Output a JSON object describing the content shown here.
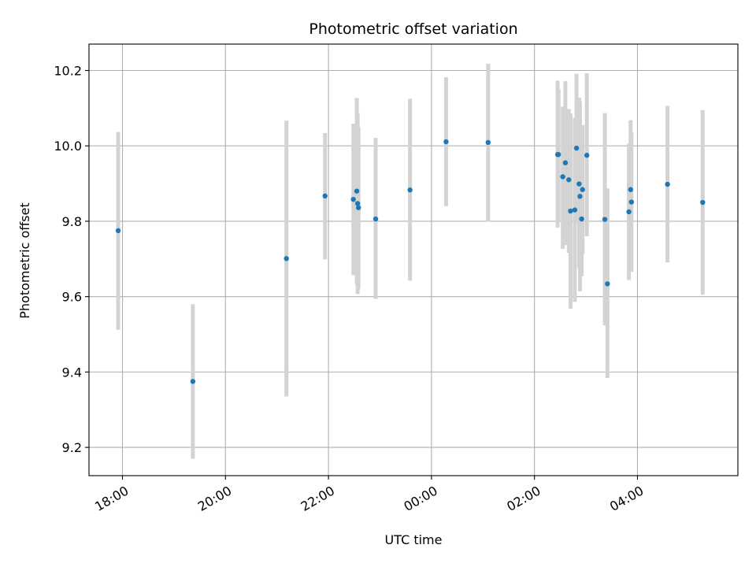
{
  "chart_data": {
    "type": "scatter",
    "title": "Photometric offset variation",
    "xlabel": "UTC time",
    "ylabel": "Photometric offset",
    "grid": true,
    "x_axis": {
      "kind": "time",
      "start": "17:21",
      "end": "05:57",
      "ticks": [
        "18:00",
        "20:00",
        "22:00",
        "00:00",
        "02:00",
        "04:00"
      ]
    },
    "y_axis": {
      "range": [
        9.125,
        10.27
      ],
      "ticks": [
        "9.2",
        "9.4",
        "9.6",
        "9.8",
        "10.0",
        "10.2"
      ]
    },
    "colors": {
      "point": "#1f77b4",
      "errorbar": "#d3d3d3",
      "grid": "#b0b0b0"
    },
    "series": [
      {
        "points": [
          {
            "t": "17:55",
            "y": 9.775,
            "lo": 9.512,
            "hi": 10.037
          },
          {
            "t": "19:22",
            "y": 9.375,
            "lo": 9.17,
            "hi": 9.58
          },
          {
            "t": "21:11",
            "y": 9.701,
            "lo": 9.335,
            "hi": 10.067
          },
          {
            "t": "21:56",
            "y": 9.867,
            "lo": 9.699,
            "hi": 10.034
          },
          {
            "t": "22:29",
            "y": 9.858,
            "lo": 9.657,
            "hi": 10.059
          },
          {
            "t": "22:33",
            "y": 9.88,
            "lo": 9.633,
            "hi": 10.127
          },
          {
            "t": "22:34",
            "y": 9.847,
            "lo": 9.607,
            "hi": 10.087
          },
          {
            "t": "22:35",
            "y": 9.836,
            "lo": 9.62,
            "hi": 10.05
          },
          {
            "t": "22:55",
            "y": 9.806,
            "lo": 9.594,
            "hi": 10.021
          },
          {
            "t": "23:35",
            "y": 9.883,
            "lo": 9.642,
            "hi": 10.125
          },
          {
            "t": "00:17",
            "y": 10.011,
            "lo": 9.84,
            "hi": 10.182
          },
          {
            "t": "01:06",
            "y": 10.009,
            "lo": 9.799,
            "hi": 10.218
          },
          {
            "t": "02:27",
            "y": 9.977,
            "lo": 9.783,
            "hi": 10.173
          },
          {
            "t": "02:28",
            "y": 9.977,
            "lo": 9.8,
            "hi": 10.15
          },
          {
            "t": "02:33",
            "y": 9.918,
            "lo": 9.727,
            "hi": 10.104
          },
          {
            "t": "02:36",
            "y": 9.955,
            "lo": 9.737,
            "hi": 10.172
          },
          {
            "t": "02:40",
            "y": 9.91,
            "lo": 9.716,
            "hi": 10.098
          },
          {
            "t": "02:42",
            "y": 9.827,
            "lo": 9.568,
            "hi": 10.086
          },
          {
            "t": "02:47",
            "y": 9.83,
            "lo": 9.586,
            "hi": 10.074
          },
          {
            "t": "02:49",
            "y": 9.994,
            "lo": 9.797,
            "hi": 10.191
          },
          {
            "t": "02:52",
            "y": 9.899,
            "lo": 9.678,
            "hi": 10.128
          },
          {
            "t": "02:53",
            "y": 9.866,
            "lo": 9.614,
            "hi": 10.118
          },
          {
            "t": "02:55",
            "y": 9.806,
            "lo": 9.654,
            "hi": 9.958
          },
          {
            "t": "02:56",
            "y": 9.884,
            "lo": 9.713,
            "hi": 10.055
          },
          {
            "t": "03:01",
            "y": 9.975,
            "lo": 9.76,
            "hi": 10.193
          },
          {
            "t": "03:22",
            "y": 9.805,
            "lo": 9.524,
            "hi": 10.087
          },
          {
            "t": "03:25",
            "y": 9.634,
            "lo": 9.384,
            "hi": 9.887
          },
          {
            "t": "03:50",
            "y": 9.825,
            "lo": 9.644,
            "hi": 10.006
          },
          {
            "t": "03:52",
            "y": 9.884,
            "lo": 9.69,
            "hi": 10.068
          },
          {
            "t": "03:53",
            "y": 9.851,
            "lo": 9.666,
            "hi": 10.035
          },
          {
            "t": "04:35",
            "y": 9.898,
            "lo": 9.691,
            "hi": 10.106
          },
          {
            "t": "05:16",
            "y": 9.85,
            "lo": 9.605,
            "hi": 10.095
          }
        ]
      }
    ]
  }
}
